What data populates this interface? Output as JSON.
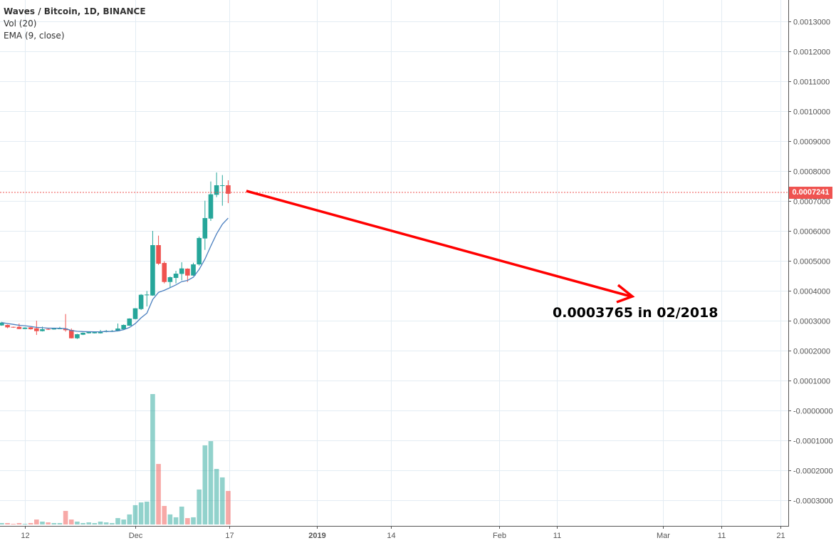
{
  "legend": {
    "title": "Waves / Bitcoin, 1D, BINANCE",
    "volume": "Vol (20)",
    "ema": "EMA (9, close)"
  },
  "annotation": "0.0003765 in 02/2018",
  "colors": {
    "up": "#26a69a",
    "down": "#ef5350",
    "ema": "#4a7fbf",
    "arrow": "#ff0000",
    "grid": "#e3ecf3",
    "price_line": "#ef5350"
  },
  "chart_data": {
    "type": "candlestick",
    "title": "Waves / Bitcoin, 1D, BINANCE",
    "ylim": [
      -0.00039,
      0.00138
    ],
    "grid": true,
    "current_price": "0.0007241",
    "y_ticks": [
      "0.0013000",
      "0.0012000",
      "0.0011000",
      "0.0010000",
      "0.0009000",
      "0.0008000",
      "0.0007000",
      "0.0006000",
      "0.0005000",
      "0.0004000",
      "0.0003000",
      "0.0002000",
      "0.0001000",
      "-0.0000000",
      "-0.0001000",
      "-0.0002000",
      "-0.0003000"
    ],
    "x_ticks": [
      "12",
      "Dec",
      "17",
      "2019",
      "14",
      "Feb",
      "11",
      "Mar",
      "11",
      "21"
    ],
    "ema_period": 9,
    "volume_unit": "percent of max",
    "candles": [
      {
        "date": "Nov 8",
        "o": 0.0002841,
        "h": 0.000296,
        "l": 0.000283,
        "c": 0.0002936,
        "v": 1.1
      },
      {
        "date": "Nov 9",
        "o": 0.0002857,
        "h": 0.000287,
        "l": 0.0002746,
        "c": 0.0002777,
        "v": 1.1
      },
      {
        "date": "Nov 10",
        "o": 0.0002793,
        "h": 0.00028,
        "l": 0.000276,
        "c": 0.0002769,
        "v": 0.5
      },
      {
        "date": "Nov 11",
        "o": 0.0002793,
        "h": 0.0002904,
        "l": 0.0002715,
        "c": 0.0002722,
        "v": 1.1
      },
      {
        "date": "Nov 12",
        "o": 0.0002722,
        "h": 0.000278,
        "l": 0.0002715,
        "c": 0.0002769,
        "v": 0.5
      },
      {
        "date": "Nov 13",
        "o": 0.0002777,
        "h": 0.000279,
        "l": 0.00027,
        "c": 0.0002714,
        "v": 1.1
      },
      {
        "date": "Nov 14",
        "o": 0.0002746,
        "h": 0.0003,
        "l": 0.0002523,
        "c": 0.000265,
        "v": 3.8
      },
      {
        "date": "Nov 15",
        "o": 0.000265,
        "h": 0.0002801,
        "l": 0.000264,
        "c": 0.0002714,
        "v": 2.2
      },
      {
        "date": "Nov 16",
        "o": 0.0002722,
        "h": 0.0002761,
        "l": 0.000269,
        "c": 0.0002698,
        "v": 1.6
      },
      {
        "date": "Nov 17",
        "o": 0.0002706,
        "h": 0.0002755,
        "l": 0.00027,
        "c": 0.0002746,
        "v": 1.1
      },
      {
        "date": "Nov 18",
        "o": 0.000273,
        "h": 0.0002793,
        "l": 0.0002725,
        "c": 0.000274,
        "v": 1.1
      },
      {
        "date": "Nov 19",
        "o": 0.0002738,
        "h": 0.0003222,
        "l": 0.0002634,
        "c": 0.0002682,
        "v": 10.4
      },
      {
        "date": "Nov 20",
        "o": 0.000269,
        "h": 0.0002738,
        "l": 0.0002405,
        "c": 0.0002412,
        "v": 3.8
      },
      {
        "date": "Nov 21",
        "o": 0.0002412,
        "h": 0.000256,
        "l": 0.0002388,
        "c": 0.0002547,
        "v": 2.2
      },
      {
        "date": "Nov 22",
        "o": 0.0002531,
        "h": 0.0002605,
        "l": 0.000252,
        "c": 0.0002595,
        "v": 1.1
      },
      {
        "date": "Nov 23",
        "o": 0.0002579,
        "h": 0.000263,
        "l": 0.000257,
        "c": 0.0002619,
        "v": 1.6
      },
      {
        "date": "Nov 24",
        "o": 0.0002579,
        "h": 0.0002625,
        "l": 0.0002572,
        "c": 0.0002619,
        "v": 1.1
      },
      {
        "date": "Nov 25",
        "o": 0.0002579,
        "h": 0.000269,
        "l": 0.000257,
        "c": 0.0002642,
        "v": 2.2
      },
      {
        "date": "Nov 26",
        "o": 0.0002619,
        "h": 0.000269,
        "l": 0.000261,
        "c": 0.0002658,
        "v": 1.6
      },
      {
        "date": "Nov 27",
        "o": 0.0002627,
        "h": 0.000269,
        "l": 0.000262,
        "c": 0.0002658,
        "v": 1.1
      },
      {
        "date": "Nov 28",
        "o": 0.000265,
        "h": 0.0002904,
        "l": 0.000264,
        "c": 0.0002738,
        "v": 4.9
      },
      {
        "date": "Nov 29",
        "o": 0.0002714,
        "h": 0.0002873,
        "l": 0.0002705,
        "c": 0.0002857,
        "v": 3.8
      },
      {
        "date": "Nov 30",
        "o": 0.0002833,
        "h": 0.000308,
        "l": 0.0002825,
        "c": 0.0003071,
        "v": 7.7
      },
      {
        "date": "Dec 1",
        "o": 0.0003055,
        "h": 0.000342,
        "l": 0.0003045,
        "c": 0.0003412,
        "v": 14.8
      },
      {
        "date": "Dec 2",
        "o": 0.0003388,
        "h": 0.0003889,
        "l": 0.0003357,
        "c": 0.0003865,
        "v": 16.9
      },
      {
        "date": "Dec 3",
        "o": 0.0003849,
        "h": 0.0003992,
        "l": 0.0003476,
        "c": 0.0003873,
        "v": 17.5
      },
      {
        "date": "Dec 4",
        "o": 0.0003841,
        "h": 0.0006,
        "l": 0.000383,
        "c": 0.0005524,
        "v": 100
      },
      {
        "date": "Dec 5",
        "o": 0.0005524,
        "h": 0.0005841,
        "l": 0.0004865,
        "c": 0.0004904,
        "v": 46.4
      },
      {
        "date": "Dec 6",
        "o": 0.0004928,
        "h": 0.0004984,
        "l": 0.0004246,
        "c": 0.0004293,
        "v": 14.2
      },
      {
        "date": "Dec 7",
        "o": 0.0004293,
        "h": 0.0004476,
        "l": 0.0004095,
        "c": 0.0004452,
        "v": 7.7
      },
      {
        "date": "Dec 8",
        "o": 0.0004428,
        "h": 0.0004666,
        "l": 0.0004246,
        "c": 0.0004571,
        "v": 5.5
      },
      {
        "date": "Dec 9",
        "o": 0.0004563,
        "h": 0.0004952,
        "l": 0.0004349,
        "c": 0.0004746,
        "v": 13.7
      },
      {
        "date": "Dec 10",
        "o": 0.0004738,
        "h": 0.000475,
        "l": 0.0004293,
        "c": 0.0004508,
        "v": 4.9
      },
      {
        "date": "Dec 11",
        "o": 0.0004508,
        "h": 0.0004936,
        "l": 0.00045,
        "c": 0.0004881,
        "v": 5.5
      },
      {
        "date": "Dec 12",
        "o": 0.0004881,
        "h": 0.0005809,
        "l": 0.0004841,
        "c": 0.0005762,
        "v": 26.8
      },
      {
        "date": "Dec 13",
        "o": 0.0005746,
        "h": 0.0007008,
        "l": 0.0005365,
        "c": 0.0006428,
        "v": 60.7
      },
      {
        "date": "Dec 14",
        "o": 0.0006412,
        "h": 0.0007651,
        "l": 0.0006333,
        "c": 0.0007222,
        "v": 63.9
      },
      {
        "date": "Dec 15",
        "o": 0.0007206,
        "h": 0.0007952,
        "l": 0.0007127,
        "c": 0.0007524,
        "v": 42.6
      },
      {
        "date": "Dec 16",
        "o": 0.0007508,
        "h": 0.0007865,
        "l": 0.0006841,
        "c": 0.0007524,
        "v": 36.1
      },
      {
        "date": "Dec 17",
        "o": 0.0007524,
        "h": 0.000769,
        "l": 0.0006928,
        "c": 0.0007241,
        "v": 25.7
      }
    ]
  }
}
